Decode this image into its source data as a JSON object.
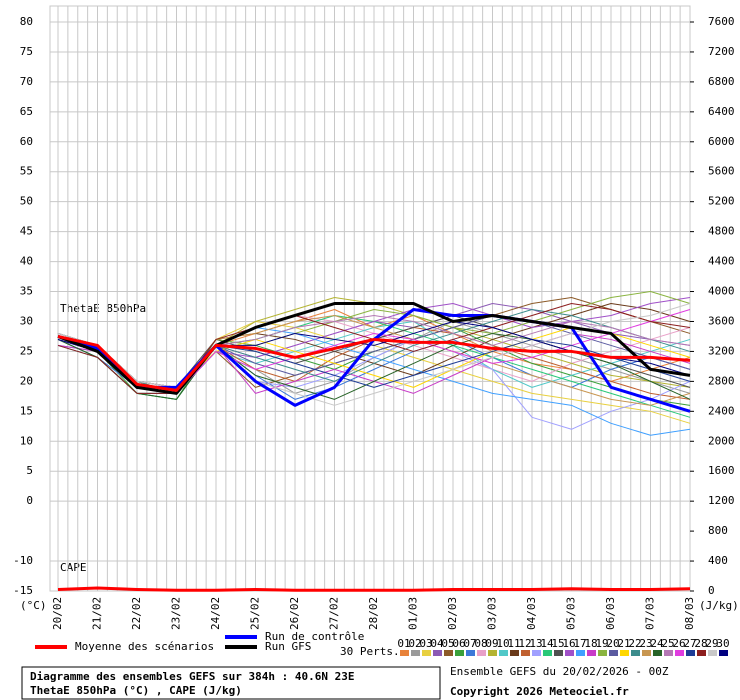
{
  "chart_data": {
    "type": "line",
    "annotations": {
      "thetae": "ThetaE 850hPa",
      "cape": "CAPE",
      "y_unit": "(°C)",
      "y2_unit": "(J/kg)",
      "perts": "30 Perts."
    },
    "x": [
      "20/02",
      "21/02",
      "22/02",
      "23/02",
      "24/02",
      "25/02",
      "26/02",
      "27/02",
      "28/02",
      "01/03",
      "02/03",
      "03/03",
      "04/03",
      "05/03",
      "06/03",
      "07/03",
      "08/03"
    ],
    "ylim": [
      -15,
      80
    ],
    "yticks": [
      -15,
      -10,
      0,
      5,
      10,
      15,
      20,
      25,
      30,
      35,
      40,
      45,
      50,
      55,
      60,
      65,
      70,
      75,
      80
    ],
    "y2lim": [
      0,
      7600
    ],
    "y2ticks": [
      0,
      400,
      800,
      1200,
      1600,
      2000,
      2400,
      2800,
      3200,
      3600,
      4000,
      4400,
      4800,
      5200,
      5600,
      6000,
      6400,
      6800,
      7200,
      7600
    ],
    "grid": true,
    "series": [
      {
        "name": "Moyenne des scénarios",
        "color": "#ff0000",
        "values": [
          27.5,
          26,
          19.5,
          18.5,
          26,
          25.5,
          24,
          25.5,
          27,
          26.5,
          26.5,
          25.5,
          25,
          25,
          24,
          24,
          23.5
        ]
      },
      {
        "name": "Run de contrôle",
        "color": "#0000ff",
        "values": [
          27.5,
          25.5,
          19,
          19,
          26,
          20,
          16,
          19,
          27,
          32,
          31,
          31,
          30,
          29,
          19,
          17,
          15
        ]
      },
      {
        "name": "Run GFS",
        "color": "#000000",
        "values": [
          27.5,
          25,
          19,
          18,
          26,
          29,
          31,
          33,
          33,
          33,
          30,
          31,
          30,
          29,
          28,
          22,
          21
        ]
      },
      {
        "color": "#ff0000",
        "axis": "y2",
        "values": [
          20,
          40,
          20,
          10,
          10,
          20,
          10,
          10,
          10,
          10,
          20,
          20,
          20,
          30,
          20,
          20,
          30
        ]
      },
      {
        "name": "01",
        "color": "#e8823a",
        "values": [
          27,
          25,
          19,
          18,
          26,
          28,
          30,
          32,
          29,
          31,
          28,
          25,
          23,
          22,
          20,
          22,
          24
        ]
      },
      {
        "name": "02",
        "color": "#9a9a9a",
        "values": [
          28,
          26,
          20,
          19,
          25,
          22,
          18,
          20,
          24,
          27,
          30,
          28,
          26,
          24,
          22,
          20,
          18
        ]
      },
      {
        "name": "03",
        "color": "#e8d040",
        "values": [
          27,
          24,
          18,
          18,
          27,
          30,
          29,
          27,
          26,
          24,
          22,
          20,
          18,
          17,
          16,
          15,
          13
        ]
      },
      {
        "name": "04",
        "color": "#8c5ab4",
        "values": [
          26,
          25,
          19,
          19,
          26,
          24,
          26,
          28,
          30,
          29,
          31,
          33,
          32,
          30,
          28,
          27,
          26
        ]
      },
      {
        "name": "05",
        "color": "#8c5a28",
        "values": [
          28,
          26,
          20,
          18,
          25,
          19,
          21,
          23,
          25,
          27,
          29,
          31,
          33,
          34,
          32,
          30,
          28
        ]
      },
      {
        "name": "06",
        "color": "#3aa03a",
        "values": [
          27,
          25,
          18,
          17,
          27,
          26,
          24,
          22,
          25,
          27,
          29,
          26,
          23,
          21,
          19,
          17,
          16
        ]
      },
      {
        "name": "07",
        "color": "#3c78d8",
        "values": [
          27,
          24,
          19,
          18,
          26,
          21,
          17,
          19,
          22,
          25,
          27,
          24,
          21,
          19,
          22,
          24,
          22
        ]
      },
      {
        "name": "08",
        "color": "#e8a0c8",
        "values": [
          28,
          26,
          20,
          19,
          26,
          29,
          31,
          30,
          28,
          26,
          24,
          22,
          20,
          23,
          25,
          27,
          29
        ]
      },
      {
        "name": "09",
        "color": "#b4b432",
        "values": [
          27,
          25,
          19,
          18,
          26,
          30,
          32,
          34,
          33,
          31,
          29,
          27,
          25,
          23,
          21,
          20,
          19
        ]
      },
      {
        "name": "10",
        "color": "#50c8c8",
        "values": [
          26,
          24,
          18,
          18,
          25,
          23,
          25,
          27,
          29,
          30,
          26,
          22,
          19,
          21,
          23,
          25,
          27
        ]
      },
      {
        "name": "11",
        "color": "#6a3a1a",
        "values": [
          27,
          25,
          19,
          18,
          27,
          28,
          27,
          25,
          23,
          21,
          24,
          27,
          29,
          31,
          33,
          32,
          30
        ]
      },
      {
        "name": "12",
        "color": "#c06030",
        "values": [
          28,
          26,
          20,
          19,
          26,
          22,
          20,
          24,
          27,
          29,
          28,
          26,
          24,
          22,
          20,
          18,
          17
        ]
      },
      {
        "name": "13",
        "color": "#a0a0ff",
        "values": [
          27,
          25,
          19,
          18,
          26,
          20,
          19,
          21,
          24,
          27,
          25,
          22,
          14,
          12,
          15,
          17,
          20
        ]
      },
      {
        "name": "14",
        "color": "#28c878",
        "values": [
          27,
          24,
          18,
          17,
          26,
          27,
          29,
          31,
          30,
          28,
          26,
          24,
          22,
          20,
          18,
          16,
          14
        ]
      },
      {
        "name": "15",
        "color": "#505050",
        "values": [
          28,
          26,
          20,
          19,
          27,
          25,
          23,
          25,
          27,
          29,
          31,
          29,
          27,
          25,
          23,
          21,
          19
        ]
      },
      {
        "name": "16",
        "color": "#a050c8",
        "values": [
          27,
          25,
          19,
          18,
          25,
          24,
          26,
          28,
          30,
          32,
          33,
          31,
          29,
          30,
          31,
          33,
          34
        ]
      },
      {
        "name": "17",
        "color": "#40a0ff",
        "values": [
          27,
          25,
          19,
          18,
          26,
          29,
          28,
          26,
          24,
          22,
          20,
          18,
          17,
          16,
          13,
          11,
          12
        ]
      },
      {
        "name": "18",
        "color": "#c83cc8",
        "values": [
          26,
          25,
          19,
          18,
          26,
          18,
          20,
          22,
          20,
          18,
          21,
          24,
          26,
          28,
          27,
          25,
          23
        ]
      },
      {
        "name": "19",
        "color": "#8ab440",
        "values": [
          28,
          26,
          20,
          18,
          27,
          26,
          28,
          30,
          32,
          31,
          29,
          28,
          30,
          32,
          34,
          35,
          33
        ]
      },
      {
        "name": "20",
        "color": "#5a5aa0",
        "values": [
          27,
          24,
          18,
          18,
          26,
          23,
          21,
          23,
          25,
          27,
          29,
          31,
          30,
          28,
          26,
          24,
          22
        ]
      },
      {
        "name": "21",
        "color": "#ffd700",
        "values": [
          27,
          25,
          19,
          19,
          25,
          27,
          25,
          23,
          21,
          19,
          22,
          25,
          27,
          29,
          28,
          26,
          24
        ]
      },
      {
        "name": "22",
        "color": "#3c8c8c",
        "values": [
          28,
          26,
          20,
          18,
          26,
          24,
          22,
          20,
          23,
          26,
          28,
          30,
          32,
          31,
          29,
          27,
          25
        ]
      },
      {
        "name": "23",
        "color": "#c89650",
        "values": [
          27,
          25,
          19,
          18,
          27,
          28,
          30,
          31,
          29,
          27,
          25,
          23,
          21,
          19,
          17,
          16,
          18
        ]
      },
      {
        "name": "24",
        "color": "#286428",
        "values": [
          27,
          24,
          18,
          17,
          26,
          21,
          19,
          17,
          20,
          23,
          26,
          28,
          27,
          25,
          23,
          20,
          17
        ]
      },
      {
        "name": "25",
        "color": "#b478b4",
        "values": [
          28,
          26,
          20,
          19,
          26,
          27,
          29,
          30,
          31,
          30,
          28,
          26,
          28,
          30,
          29,
          27,
          26
        ]
      },
      {
        "name": "26",
        "color": "#e03ce0",
        "values": [
          27,
          25,
          19,
          18,
          25,
          22,
          24,
          26,
          28,
          27,
          25,
          23,
          24,
          26,
          28,
          30,
          32
        ]
      },
      {
        "name": "27",
        "color": "#1e3c96",
        "values": [
          27,
          25,
          19,
          18,
          26,
          25,
          23,
          21,
          19,
          21,
          23,
          25,
          27,
          26,
          24,
          22,
          20
        ]
      },
      {
        "name": "28",
        "color": "#8c1e1e",
        "values": [
          26,
          24,
          18,
          18,
          27,
          29,
          31,
          29,
          27,
          25,
          27,
          29,
          31,
          33,
          32,
          30,
          29
        ]
      },
      {
        "name": "29",
        "color": "#c8c8c8",
        "values": [
          28,
          26,
          20,
          19,
          26,
          20,
          18,
          16,
          18,
          20,
          22,
          24,
          26,
          28,
          30,
          31,
          33
        ]
      },
      {
        "name": "30",
        "color": "#000080",
        "values": [
          27,
          25,
          19,
          18,
          26,
          26,
          28,
          27,
          26,
          28,
          30,
          29,
          27,
          25,
          24,
          23,
          21
        ]
      }
    ]
  },
  "footer": {
    "title": "Diagramme des ensembles GEFS sur 384h : 40.6N 23E",
    "subtitle": "ThetaE 850hPa (°C) , CAPE (J/kg)",
    "run": "Ensemble GEFS du 20/02/2026 - 00Z",
    "copyright": "Copyright 2026 Meteociel.fr"
  }
}
